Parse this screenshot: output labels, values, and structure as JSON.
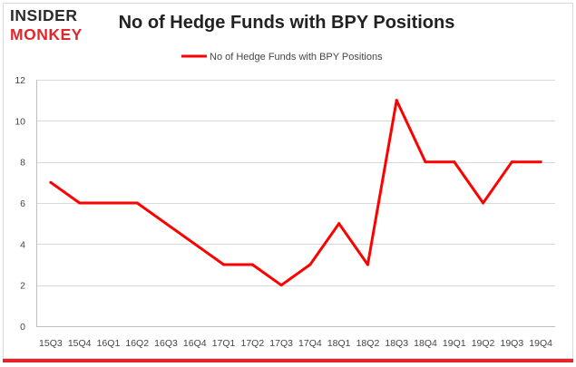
{
  "logo": {
    "line1": "INSIDER",
    "line2": "MONKEY"
  },
  "colors": {
    "series": "#ff0000",
    "accent_red": "#e3262b",
    "bottom_rule": "#e3262b"
  },
  "chart_data": {
    "type": "line",
    "title": "No of Hedge Funds with BPY Positions",
    "xlabel": "",
    "ylabel": "",
    "legend_position": "top-center",
    "grid": true,
    "ylim": [
      0,
      12
    ],
    "yticks": [
      0,
      2,
      4,
      6,
      8,
      10,
      12
    ],
    "categories": [
      "15Q3",
      "15Q4",
      "16Q1",
      "16Q2",
      "16Q3",
      "16Q4",
      "17Q1",
      "17Q2",
      "17Q3",
      "17Q4",
      "18Q1",
      "18Q2",
      "18Q3",
      "18Q4",
      "19Q1",
      "19Q2",
      "19Q3",
      "19Q4"
    ],
    "series": [
      {
        "name": "No of Hedge Funds with BPY Positions",
        "values": [
          7,
          6,
          6,
          6,
          5,
          4,
          3,
          3,
          2,
          3,
          5,
          3,
          11,
          8,
          8,
          6,
          8,
          8
        ]
      }
    ]
  }
}
